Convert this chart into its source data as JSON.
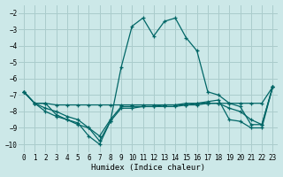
{
  "xlabel": "Humidex (Indice chaleur)",
  "background_color": "#cce8e8",
  "grid_color": "#aacccc",
  "line_color": "#006666",
  "xlim": [
    -0.5,
    23.5
  ],
  "ylim": [
    -10.5,
    -1.5
  ],
  "yticks": [
    -10,
    -9,
    -8,
    -7,
    -6,
    -5,
    -4,
    -3,
    -2
  ],
  "xticks": [
    0,
    1,
    2,
    3,
    4,
    5,
    6,
    7,
    8,
    9,
    10,
    11,
    12,
    13,
    14,
    15,
    16,
    17,
    18,
    19,
    20,
    21,
    22,
    23
  ],
  "lines": [
    {
      "x": [
        0,
        1,
        2,
        3,
        4,
        5,
        6,
        7,
        8,
        9,
        10,
        11,
        12,
        13,
        14,
        15,
        16,
        17,
        18,
        19,
        20,
        21,
        22,
        23
      ],
      "y": [
        -6.8,
        -7.5,
        -7.5,
        -8.2,
        -8.5,
        -8.7,
        -9.5,
        -10.0,
        -8.6,
        -5.3,
        -2.8,
        -2.3,
        -3.4,
        -2.5,
        -2.3,
        -3.5,
        -4.3,
        -6.8,
        -7.0,
        -7.5,
        -7.7,
        -8.8,
        -8.8,
        -6.5
      ]
    },
    {
      "x": [
        0,
        1,
        2,
        3,
        4,
        5,
        6,
        7,
        8,
        9,
        10,
        11,
        12,
        13,
        14,
        15,
        16,
        17,
        18,
        19,
        20,
        21,
        22,
        23
      ],
      "y": [
        -6.8,
        -7.5,
        -7.5,
        -7.6,
        -7.6,
        -7.6,
        -7.6,
        -7.6,
        -7.6,
        -7.6,
        -7.6,
        -7.6,
        -7.6,
        -7.6,
        -7.6,
        -7.6,
        -7.5,
        -7.5,
        -7.5,
        -7.5,
        -7.5,
        -7.5,
        -7.5,
        -6.5
      ]
    },
    {
      "x": [
        0,
        1,
        2,
        3,
        4,
        5,
        6,
        7,
        8,
        9,
        10,
        11,
        12,
        13,
        14,
        15,
        16,
        17,
        18,
        19,
        20,
        21,
        22,
        23
      ],
      "y": [
        -6.8,
        -7.5,
        -7.8,
        -8.0,
        -8.3,
        -8.5,
        -9.0,
        -9.5,
        -8.5,
        -7.7,
        -7.7,
        -7.7,
        -7.7,
        -7.7,
        -7.7,
        -7.6,
        -7.6,
        -7.5,
        -7.5,
        -7.8,
        -8.0,
        -8.5,
        -8.8,
        -6.5
      ]
    },
    {
      "x": [
        0,
        1,
        2,
        3,
        4,
        5,
        6,
        7,
        8,
        9,
        10,
        11,
        12,
        13,
        14,
        15,
        16,
        17,
        18,
        19,
        20,
        21,
        22,
        23
      ],
      "y": [
        -6.8,
        -7.5,
        -8.0,
        -8.3,
        -8.5,
        -8.8,
        -9.0,
        -9.8,
        -8.6,
        -7.8,
        -7.8,
        -7.7,
        -7.7,
        -7.6,
        -7.6,
        -7.5,
        -7.5,
        -7.4,
        -7.3,
        -8.5,
        -8.6,
        -9.0,
        -9.0,
        -6.5
      ]
    }
  ]
}
